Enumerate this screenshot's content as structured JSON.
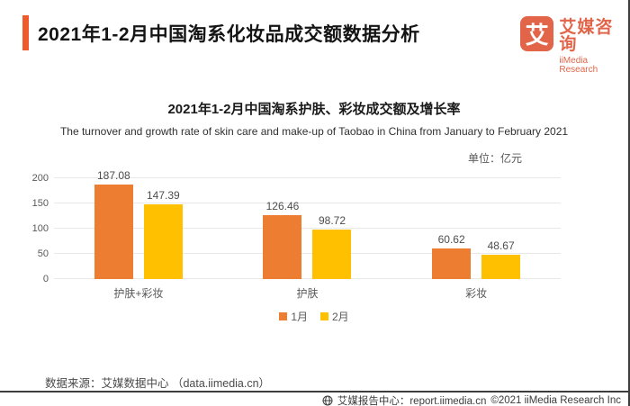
{
  "header": {
    "title": "2021年1-2月中国淘系化妆品成交额数据分析",
    "logo": {
      "mark": "艾",
      "name_cn": "艾媒咨询",
      "name_en": "iiMedia Research"
    }
  },
  "chart": {
    "title": "2021年1-2月中国淘系护肤、彩妆成交额及增长率",
    "subtitle": "The turnover and growth rate of skin care and make-up of Taobao in China from January to February 2021",
    "unit_label": "单位：亿元"
  },
  "chart_data": {
    "type": "bar",
    "title": "2021年1-2月中国淘系护肤、彩妆成交额及增长率",
    "categories": [
      "护肤+彩妆",
      "护肤",
      "彩妆"
    ],
    "series": [
      {
        "name": "1月",
        "color": "#ED7D31",
        "values": [
          187.08,
          126.46,
          60.62
        ]
      },
      {
        "name": "2月",
        "color": "#FFC000",
        "values": [
          147.39,
          98.72,
          48.67
        ]
      }
    ],
    "ylabel": "亿元",
    "ylim": [
      0,
      200
    ],
    "yticks": [
      0,
      50,
      100,
      150,
      200
    ],
    "grid": true,
    "legend_position": "bottom"
  },
  "source": {
    "text": "数据来源：艾媒数据中心 （data.iimedia.cn）"
  },
  "footer": {
    "site": "艾媒报告中心：report.iimedia.cn",
    "copyright": "©2021  iiMedia Research Inc"
  },
  "colors": {
    "accent": "#F0592C",
    "brand": "#E2654A",
    "bar_jan": "#ED7D31",
    "bar_feb": "#FFC000"
  }
}
